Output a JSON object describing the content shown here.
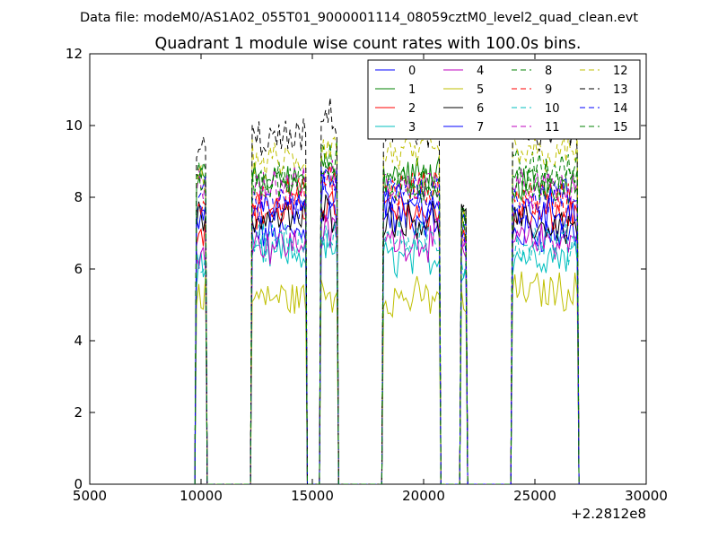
{
  "header_text": "Data file: modeM0/AS1A02_055T01_9000001114_08059cztM0_level2_quad_clean.evt",
  "chart_data": {
    "type": "line",
    "title": "Quadrant 1 module wise count rates with 100.0s bins.",
    "xlabel": "",
    "ylabel": "",
    "x_offset_label": "+2.2812e8",
    "xlim": [
      5000,
      30000
    ],
    "ylim": [
      0,
      12
    ],
    "x_ticks": [
      5000,
      10000,
      15000,
      20000,
      25000,
      30000
    ],
    "y_ticks": [
      0,
      2,
      4,
      6,
      8,
      10,
      12
    ],
    "grid": false,
    "legend_position": "top-right",
    "legend_columns": 4,
    "segments": [
      [
        9800,
        10200
      ],
      [
        12300,
        14700
      ],
      [
        15400,
        16100
      ],
      [
        18200,
        20700
      ],
      [
        21700,
        21900
      ],
      [
        24000,
        26900
      ]
    ],
    "series": [
      {
        "name": "0",
        "color": "#0000ff",
        "dash": "solid",
        "levels": [
          7.5,
          7.0,
          7.6,
          7.4,
          7.2,
          7.0
        ]
      },
      {
        "name": "1",
        "color": "#008000",
        "dash": "solid",
        "levels": [
          8.6,
          8.4,
          8.8,
          8.6,
          7.2,
          8.4
        ]
      },
      {
        "name": "2",
        "color": "#ff0000",
        "dash": "solid",
        "levels": [
          7.2,
          7.6,
          7.8,
          7.6,
          6.8,
          7.5
        ]
      },
      {
        "name": "3",
        "color": "#00bfbf",
        "dash": "solid",
        "levels": [
          6.0,
          6.4,
          6.6,
          6.3,
          6.0,
          6.4
        ]
      },
      {
        "name": "4",
        "color": "#bf00bf",
        "dash": "solid",
        "levels": [
          6.6,
          6.7,
          7.0,
          6.8,
          6.4,
          6.8
        ]
      },
      {
        "name": "5",
        "color": "#bfbf00",
        "dash": "solid",
        "levels": [
          5.3,
          5.2,
          5.3,
          5.2,
          5.0,
          5.4
        ]
      },
      {
        "name": "6",
        "color": "#000000",
        "dash": "solid",
        "levels": [
          7.4,
          7.4,
          7.6,
          7.4,
          7.4,
          7.2
        ]
      },
      {
        "name": "7",
        "color": "#0000ff",
        "dash": "solid",
        "levels": [
          7.3,
          7.6,
          8.2,
          7.8,
          7.0,
          7.6
        ]
      },
      {
        "name": "8",
        "color": "#008000",
        "dash": "dashed",
        "levels": [
          8.8,
          8.5,
          9.0,
          8.4,
          7.4,
          8.8
        ]
      },
      {
        "name": "9",
        "color": "#ff0000",
        "dash": "dashed",
        "levels": [
          7.8,
          8.0,
          8.4,
          8.2,
          7.0,
          8.0
        ]
      },
      {
        "name": "10",
        "color": "#00bfbf",
        "dash": "dashed",
        "levels": [
          6.3,
          6.8,
          7.0,
          6.8,
          6.2,
          6.7
        ]
      },
      {
        "name": "11",
        "color": "#bf00bf",
        "dash": "dashed",
        "levels": [
          8.4,
          8.3,
          8.6,
          8.3,
          7.0,
          8.2
        ]
      },
      {
        "name": "12",
        "color": "#bfbf00",
        "dash": "dashed",
        "levels": [
          8.6,
          9.0,
          9.4,
          9.2,
          7.3,
          9.2
        ]
      },
      {
        "name": "13",
        "color": "#000000",
        "dash": "dashed",
        "levels": [
          9.4,
          9.6,
          10.2,
          9.8,
          7.4,
          9.8
        ]
      },
      {
        "name": "14",
        "color": "#0000ff",
        "dash": "dashed",
        "levels": [
          8.0,
          7.8,
          8.4,
          8.2,
          7.0,
          8.0
        ]
      },
      {
        "name": "15",
        "color": "#008000",
        "dash": "dashed",
        "levels": [
          8.5,
          8.4,
          8.6,
          8.3,
          7.2,
          8.5
        ]
      }
    ]
  }
}
